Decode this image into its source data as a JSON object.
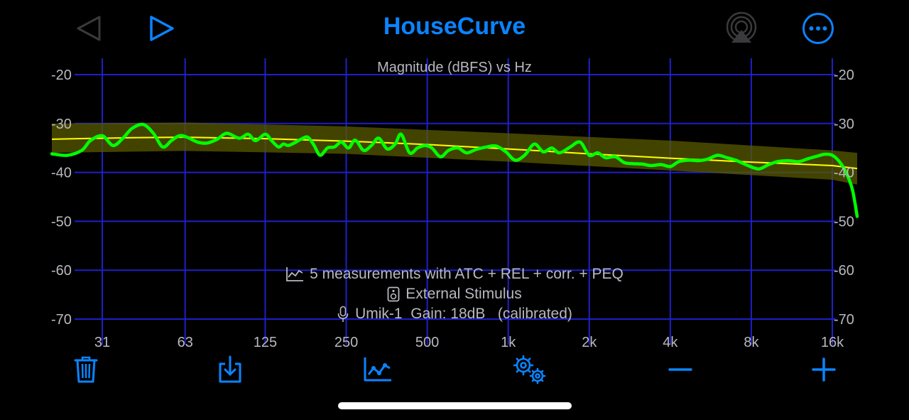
{
  "app": {
    "title": "HouseCurve"
  },
  "nav": {
    "back_icon": "back-triangle-icon",
    "play_icon": "play-triangle-icon",
    "airplay_icon": "airplay-icon",
    "more_icon": "more-ellipsis-icon"
  },
  "colors": {
    "accent": "#0a84ff",
    "background": "#000000",
    "grid": "#1f1fc8",
    "measurement": "#00ff00",
    "target": "#ffff00",
    "target_band": "#5a5a00",
    "label": "#b8b8c0"
  },
  "chart_data": {
    "type": "line",
    "title": "Magnitude (dBFS) vs Hz",
    "xscale": "log",
    "x_ticks": [
      31,
      63,
      125,
      250,
      500,
      1000,
      2000,
      4000,
      8000,
      16000
    ],
    "x_tick_labels": [
      "31",
      "63",
      "125",
      "250",
      "500",
      "1k",
      "2k",
      "4k",
      "8k",
      "16k"
    ],
    "y_ticks": [
      -20,
      -30,
      -40,
      -50,
      -60,
      -70
    ],
    "y_tick_labels": [
      "-20",
      "-30",
      "-40",
      "-50",
      "-60",
      "-70"
    ],
    "xlim": [
      20,
      20000
    ],
    "ylim": [
      -75,
      -17
    ],
    "grid": true,
    "series": [
      {
        "type": "band",
        "color": "#5a5a00",
        "x": [
          20,
          63,
          250,
          1000,
          4000,
          16000,
          20000
        ],
        "upper": [
          -30.0,
          -29.8,
          -30.6,
          -32.0,
          -33.5,
          -35.5,
          -36.0
        ],
        "lower": [
          -36.0,
          -35.6,
          -36.2,
          -37.8,
          -39.6,
          -41.5,
          -42.5
        ]
      },
      {
        "type": "line",
        "color": "#ffff00",
        "x": [
          20,
          40,
          63,
          125,
          250,
          500,
          1000,
          2000,
          4000,
          8000,
          16000,
          20000
        ],
        "y": [
          -33.2,
          -32.9,
          -32.8,
          -33.1,
          -33.6,
          -34.3,
          -35.2,
          -36.2,
          -37.1,
          -37.9,
          -38.6,
          -39.2
        ]
      },
      {
        "type": "line",
        "color": "#00ff00",
        "x": [
          20,
          23,
          26,
          28,
          31,
          34,
          37,
          40,
          44,
          48,
          52,
          56,
          60,
          64,
          70,
          76,
          83,
          90,
          100,
          108,
          115,
          125,
          132,
          140,
          146,
          152,
          160,
          170,
          180,
          190,
          200,
          213,
          226,
          240,
          255,
          270,
          290,
          310,
          330,
          355,
          380,
          400,
          430,
          460,
          490,
          520,
          560,
          600,
          650,
          700,
          760,
          830,
          900,
          980,
          1060,
          1150,
          1250,
          1350,
          1450,
          1550,
          1700,
          1850,
          2000,
          2150,
          2300,
          2500,
          2700,
          2900,
          3150,
          3400,
          3700,
          4000,
          4300,
          4700,
          5100,
          5500,
          6000,
          6500,
          7000,
          7700,
          8500,
          9200,
          10000,
          11000,
          12000,
          13000,
          14000,
          15000,
          16000,
          17000,
          18000,
          19000,
          20000
        ],
        "y": [
          -36.2,
          -36.5,
          -35.5,
          -33.5,
          -32.5,
          -34.5,
          -33.0,
          -31.0,
          -30.2,
          -32.0,
          -34.8,
          -33.5,
          -32.5,
          -32.8,
          -33.8,
          -34.0,
          -33.2,
          -32.0,
          -33.0,
          -32.2,
          -33.5,
          -32.2,
          -33.5,
          -34.8,
          -34.2,
          -34.5,
          -34.0,
          -33.2,
          -32.8,
          -34.5,
          -36.5,
          -35.0,
          -34.8,
          -33.8,
          -35.0,
          -33.4,
          -35.5,
          -34.5,
          -33.0,
          -35.2,
          -34.2,
          -32.2,
          -36.0,
          -35.0,
          -34.5,
          -35.0,
          -36.8,
          -35.5,
          -35.0,
          -36.0,
          -35.3,
          -34.8,
          -34.6,
          -35.8,
          -37.5,
          -36.5,
          -34.2,
          -35.8,
          -35.0,
          -36.0,
          -34.8,
          -33.8,
          -36.5,
          -36.0,
          -37.0,
          -36.8,
          -38.0,
          -38.2,
          -38.3,
          -38.6,
          -38.4,
          -38.8,
          -37.8,
          -37.5,
          -37.6,
          -37.3,
          -36.5,
          -37.0,
          -37.5,
          -38.5,
          -39.3,
          -38.5,
          -37.8,
          -37.6,
          -37.8,
          -37.2,
          -36.7,
          -36.3,
          -36.5,
          -37.8,
          -40.0,
          -43.5,
          -49.0
        ]
      }
    ]
  },
  "info": {
    "measurements": "5 measurements with ATC + REL + corr. + PEQ",
    "stimulus": "External Stimulus",
    "mic": "Umik-1  Gain: 18dB   (calibrated)"
  },
  "toolbar": {
    "delete_icon": "trash-icon",
    "export_icon": "download-tray-icon",
    "chart_icon": "line-chart-icon",
    "settings_icon": "gears-icon",
    "zoom_out_icon": "minus-icon",
    "zoom_in_icon": "plus-icon"
  }
}
